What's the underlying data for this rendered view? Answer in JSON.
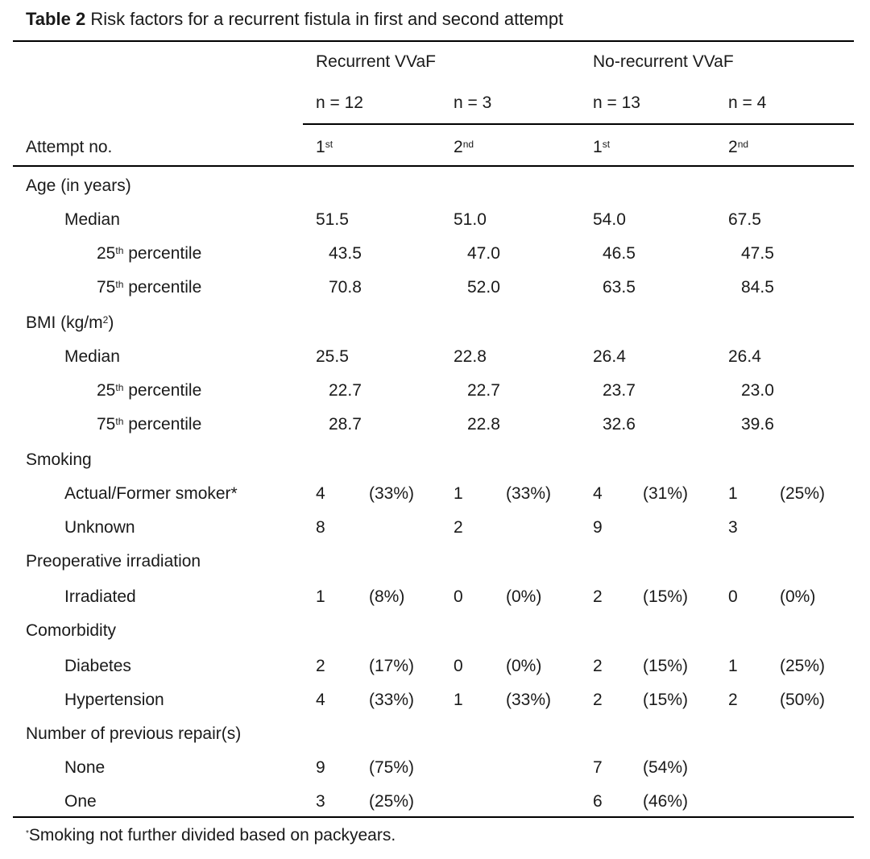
{
  "title": {
    "label": "Table 2",
    "text": "Risk factors for a recurrent fistula in first and second attempt"
  },
  "header": {
    "group_recurrent": "Recurrent VVaF",
    "group_norecurrent": "No-recurrent VVaF",
    "n": [
      "n = 12",
      "n = 3",
      "n = 13",
      "n = 4"
    ],
    "attempt_label": "Attempt no.",
    "attempts": [
      {
        "num": "1",
        "sup": "st"
      },
      {
        "num": "2",
        "sup": "nd"
      },
      {
        "num": "1",
        "sup": "st"
      },
      {
        "num": "2",
        "sup": "nd"
      }
    ]
  },
  "sections": [
    {
      "label": "Age (in years)",
      "rows": [
        {
          "label": "Median",
          "kind": "median",
          "values": [
            "51.5",
            "51.0",
            "54.0",
            "67.5"
          ]
        },
        {
          "label_num": "25",
          "label_sup": "th",
          "label_text": " percentile",
          "kind": "pct",
          "values": [
            "43.5",
            "47.0",
            "46.5",
            "47.5"
          ]
        },
        {
          "label_num": "75",
          "label_sup": "th",
          "label_text": " percentile",
          "kind": "pct",
          "values": [
            "70.8",
            "52.0",
            "63.5",
            "84.5"
          ]
        }
      ]
    },
    {
      "label": "BMI (kg/m",
      "label_sup": "2",
      "label_after": ")",
      "rows": [
        {
          "label": "Median",
          "kind": "median",
          "values": [
            "25.5",
            "22.8",
            "26.4",
            "26.4"
          ]
        },
        {
          "label_num": "25",
          "label_sup": "th",
          "label_text": " percentile",
          "kind": "pct",
          "values": [
            "22.7",
            "22.7",
            "23.7",
            "23.0"
          ]
        },
        {
          "label_num": "75",
          "label_sup": "th",
          "label_text": " percentile",
          "kind": "pct",
          "values": [
            "28.7",
            "22.8",
            "32.6",
            "39.6"
          ]
        }
      ]
    },
    {
      "label": "Smoking",
      "rows": [
        {
          "label": "Actual/Former smoker*",
          "kind": "count",
          "values": [
            "4",
            "(33%)",
            "1",
            "(33%)",
            "4",
            "(31%)",
            "1",
            "(25%)"
          ]
        },
        {
          "label": "Unknown",
          "kind": "count",
          "values": [
            "8",
            "",
            "2",
            "",
            "9",
            "",
            "3",
            ""
          ]
        }
      ]
    },
    {
      "label": "Preoperative irradiation",
      "rows": [
        {
          "label": "Irradiated",
          "kind": "count",
          "values": [
            "1",
            "(8%)",
            "0",
            "(0%)",
            "2",
            "(15%)",
            "0",
            "(0%)"
          ]
        }
      ]
    },
    {
      "label": "Comorbidity",
      "rows": [
        {
          "label": "Diabetes",
          "kind": "count",
          "values": [
            "2",
            "(17%)",
            "0",
            "(0%)",
            "2",
            "(15%)",
            "1",
            "(25%)"
          ]
        },
        {
          "label": "Hypertension",
          "kind": "count",
          "values": [
            "4",
            "(33%)",
            "1",
            "(33%)",
            "2",
            "(15%)",
            "2",
            "(50%)"
          ]
        }
      ]
    },
    {
      "label": "Number of previous repair(s)",
      "rows": [
        {
          "label": "None",
          "kind": "count",
          "values": [
            "9",
            "(75%)",
            "",
            "",
            "7",
            "(54%)",
            "",
            ""
          ]
        },
        {
          "label": "One",
          "kind": "count",
          "values": [
            "3",
            "(25%)",
            "",
            "",
            "6",
            "(46%)",
            "",
            ""
          ]
        }
      ]
    }
  ],
  "footnote": {
    "mark": "*",
    "text": "Smoking not further divided based on packyears."
  }
}
